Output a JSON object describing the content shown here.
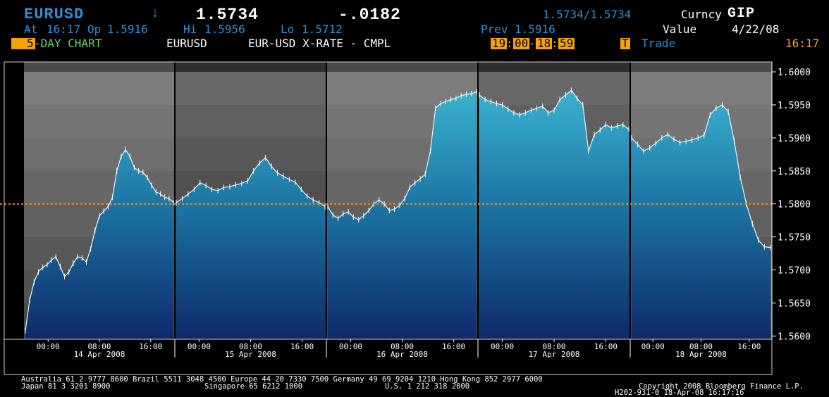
{
  "header": {
    "ticker": "EURUSD",
    "arrow": "↓",
    "last_price": "1.5734",
    "net_change": "-.0182",
    "bid_ask": "1.5734/1.5734",
    "market_sector_label": "Curncy",
    "function": "GIP",
    "at_label": "At",
    "at_time": "16:17",
    "op_label": "Op",
    "op_value": "1.5916",
    "hi_label": "Hi",
    "hi_value": "1.5956",
    "lo_label": "Lo",
    "lo_value": "1.5712",
    "prev_label": "Prev",
    "prev_value": "1.5916",
    "value_label": "Value",
    "value_date": "4/22/08",
    "period_number": "5",
    "period_text": "-DAY CHART",
    "security": "EURUSD",
    "description": "EUR-USD X-RATE - CMPL",
    "session_start_h": "19",
    "session_start_m": "00",
    "session_end_h": "18",
    "session_end_m": "59",
    "trade_key": "T",
    "trade_label": "Trade",
    "clock": "16:17"
  },
  "footer": {
    "line1": "Australia 61 2 9777 8600 Brazil 5511 3048 4500 Europe 44 20 7330 7500 Germany 49 69 9204 1210 Hong Kong 852 2977 6000",
    "line2a": "Japan 81 3 3201 8900",
    "line2b": "Singapore 65 6212 1000",
    "line2c": "U.S. 1 212 318 2000",
    "line2d": "Copyright 2008 Bloomberg Finance L.P.",
    "line3": "H202-931-0 18-Apr-08 16:17:16"
  },
  "colors": {
    "amber": "#f7a400",
    "header_blue": "#2e8fdb",
    "reference_line": "#ff8c00",
    "fill_top": "#3bb3d0",
    "fill_bottom": "#0e2a6a"
  },
  "chart_data": {
    "type": "area",
    "title": "",
    "xlabel": "",
    "ylabel": "",
    "ylim": [
      1.5595,
      1.6015
    ],
    "y_ticks": [
      "1.5600",
      "1.5650",
      "1.5700",
      "1.5750",
      "1.5800",
      "1.5850",
      "1.5900",
      "1.5950",
      "1.6000"
    ],
    "reference_line": 1.58,
    "days": [
      {
        "date_label": "14 Apr 2008",
        "time_ticks": [
          "00:00",
          "08:00",
          "16:00"
        ],
        "values": [
          1.5608,
          1.5655,
          1.5682,
          1.5697,
          1.5704,
          1.5708,
          1.5715,
          1.572,
          1.5705,
          1.569,
          1.5697,
          1.571,
          1.572,
          1.5718,
          1.5712,
          1.5732,
          1.576,
          1.5782,
          1.5789,
          1.5796,
          1.581,
          1.585,
          1.5872,
          1.5882,
          1.5872,
          1.5855,
          1.585,
          1.5848,
          1.584,
          1.5828,
          1.5818,
          1.5815,
          1.581,
          1.5808,
          1.5802
        ]
      },
      {
        "date_label": "15 Apr 2008",
        "time_ticks": [
          "00:00",
          "08:00",
          "16:00"
        ],
        "values": [
          1.5802,
          1.5808,
          1.5815,
          1.5822,
          1.5832,
          1.5828,
          1.5822,
          1.582,
          1.5825,
          1.5826,
          1.5829,
          1.5831,
          1.5835,
          1.585,
          1.5862,
          1.587,
          1.5857,
          1.5847,
          1.5842,
          1.5837,
          1.5833,
          1.5822,
          1.5812,
          1.5806,
          1.5802,
          1.5796
        ]
      },
      {
        "date_label": "16 Apr 2008",
        "time_ticks": [
          "00:00",
          "08:00",
          "16:00"
        ],
        "values": [
          1.5796,
          1.5783,
          1.5778,
          1.5785,
          1.5788,
          1.578,
          1.5776,
          1.5782,
          1.579,
          1.58,
          1.5806,
          1.58,
          1.579,
          1.5792,
          1.5798,
          1.5808,
          1.5825,
          1.5832,
          1.5838,
          1.5845,
          1.588,
          1.5945,
          1.5952,
          1.5955,
          1.5958,
          1.596,
          1.5964,
          1.5966,
          1.5967,
          1.597
        ]
      },
      {
        "date_label": "17 Apr 2008",
        "time_ticks": [
          "00:00",
          "08:00",
          "16:00"
        ],
        "values": [
          1.5965,
          1.5958,
          1.5955,
          1.5952,
          1.595,
          1.5944,
          1.5938,
          1.5935,
          1.5938,
          1.5942,
          1.5945,
          1.5948,
          1.5938,
          1.5942,
          1.5958,
          1.5965,
          1.5972,
          1.596,
          1.595,
          1.588,
          1.5905,
          1.5912,
          1.592,
          1.5915,
          1.5918,
          1.592,
          1.5913
        ]
      },
      {
        "date_label": "18 Apr 2008",
        "time_ticks": [
          "00:00",
          "08:00",
          "16:00"
        ],
        "values": [
          1.59,
          1.589,
          1.588,
          1.5885,
          1.5892,
          1.59,
          1.5905,
          1.5898,
          1.5893,
          1.5895,
          1.5897,
          1.59,
          1.5904,
          1.5935,
          1.5945,
          1.595,
          1.594,
          1.5895,
          1.584,
          1.58,
          1.577,
          1.5745,
          1.5735,
          1.5734
        ]
      }
    ]
  }
}
